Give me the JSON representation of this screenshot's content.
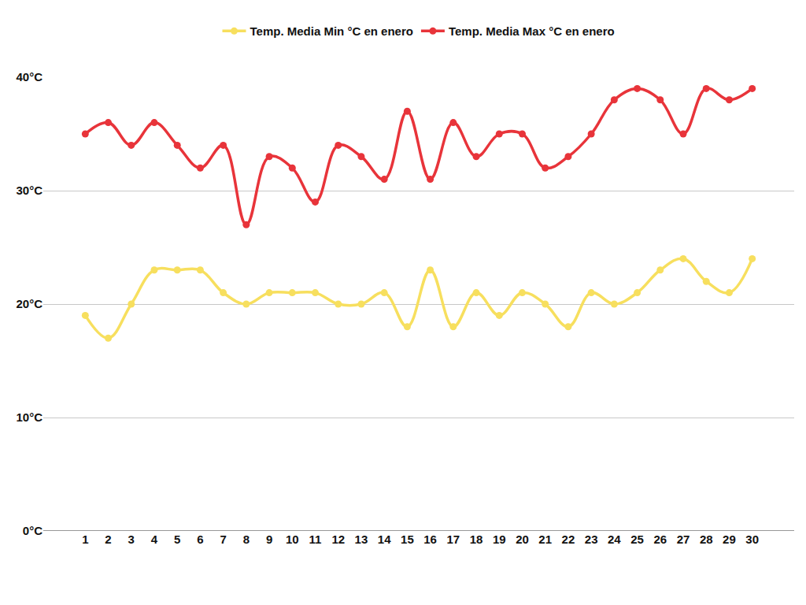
{
  "chart_data": {
    "type": "line",
    "categories": [
      "1",
      "2",
      "3",
      "4",
      "5",
      "6",
      "7",
      "8",
      "9",
      "10",
      "11",
      "12",
      "13",
      "14",
      "15",
      "16",
      "17",
      "18",
      "19",
      "20",
      "21",
      "22",
      "23",
      "24",
      "25",
      "26",
      "27",
      "28",
      "29",
      "30"
    ],
    "series": [
      {
        "name": "Temp. Media Min °C en enero",
        "color": "#f7df5e",
        "marker": "circle",
        "line_style": "solid",
        "values": [
          19,
          17,
          20,
          23,
          23,
          23,
          21,
          20,
          21,
          21,
          21,
          20,
          20,
          21,
          18,
          23,
          18,
          21,
          19,
          21,
          20,
          18,
          21,
          20,
          21,
          23,
          24,
          22,
          21,
          24
        ]
      },
      {
        "name": "Temp. Media Max °C en enero",
        "color": "#e8343a",
        "marker": "circle",
        "line_style": "solid",
        "values": [
          35,
          36,
          34,
          36,
          34,
          32,
          34,
          27,
          33,
          32,
          29,
          34,
          33,
          31,
          37,
          31,
          36,
          33,
          35,
          35,
          32,
          33,
          35,
          38,
          39,
          38,
          35,
          39,
          38,
          39
        ]
      }
    ],
    "ylim": [
      0,
      40
    ],
    "yticks": [
      {
        "value": 0,
        "label": "0°C"
      },
      {
        "value": 10,
        "label": "10°C"
      },
      {
        "value": 20,
        "label": "20°C"
      },
      {
        "value": 30,
        "label": "30°C"
      },
      {
        "value": 40,
        "label": "40°C"
      }
    ],
    "grid": true,
    "legend": "top"
  }
}
